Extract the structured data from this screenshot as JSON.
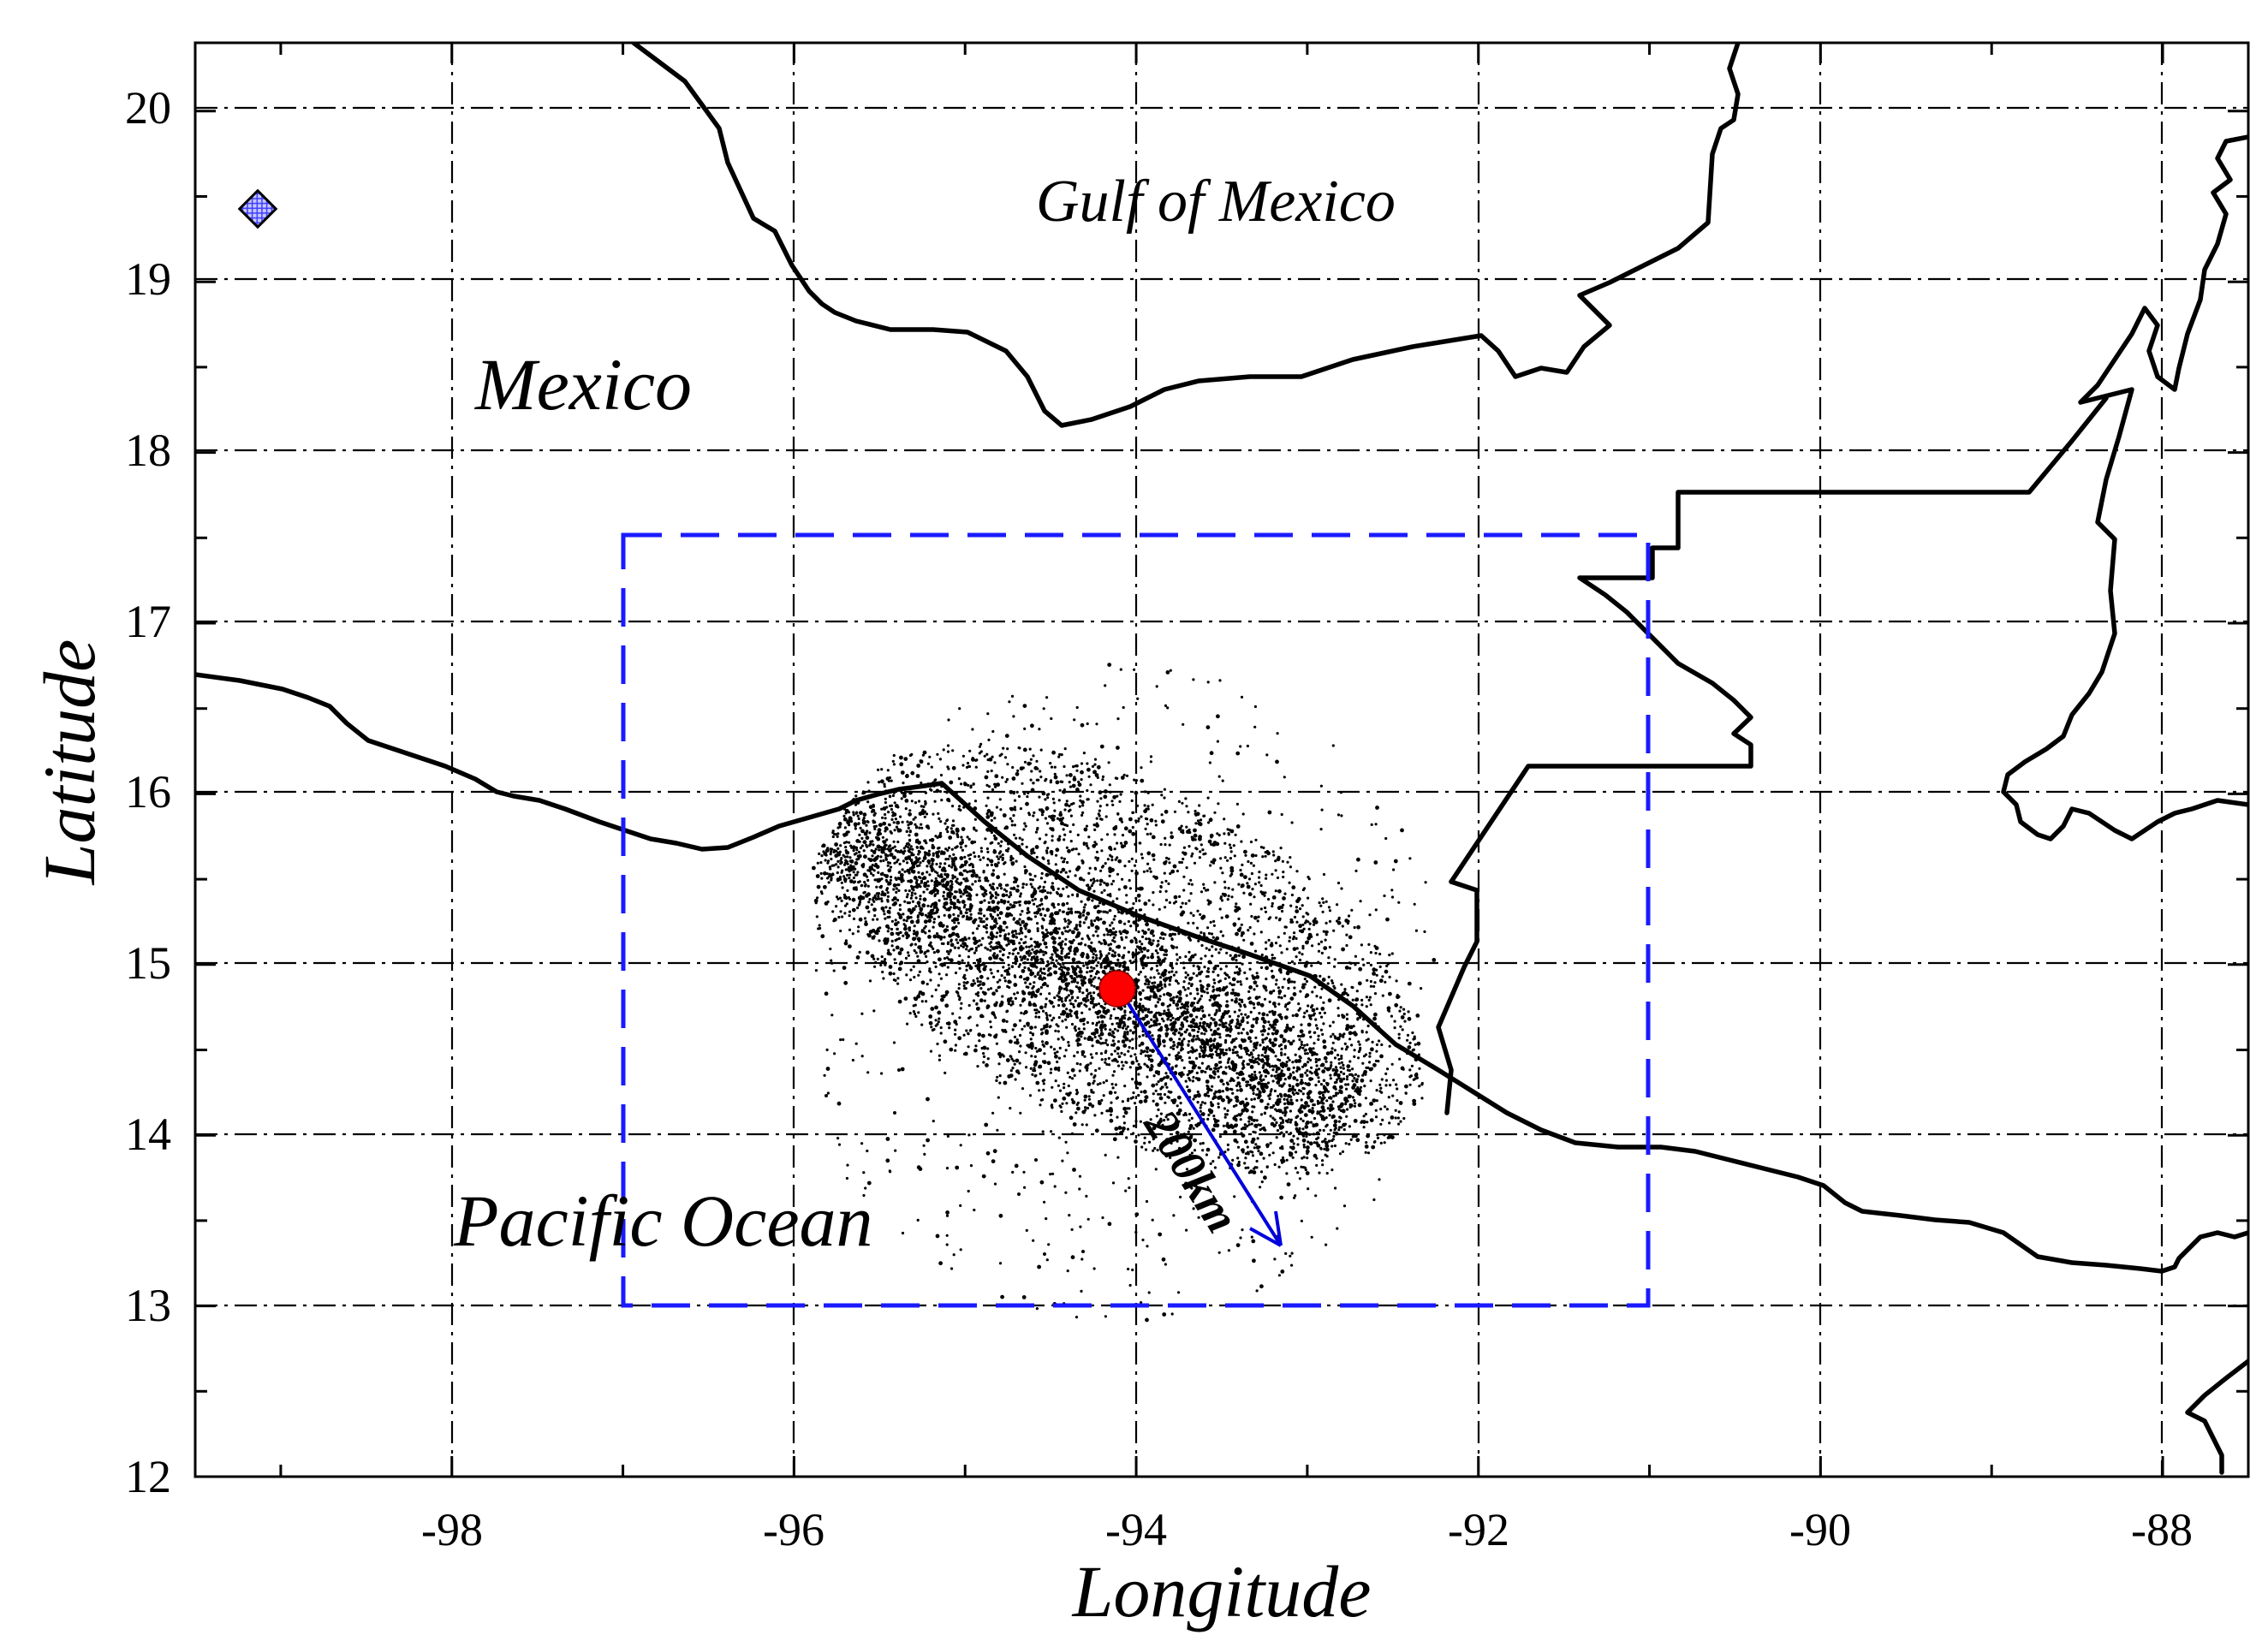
{
  "figure": {
    "x_axis_title": "Longitude",
    "y_axis_title": "Latitude",
    "x_ticks": [
      "-98",
      "-96",
      "-94",
      "-92",
      "-90",
      "-88"
    ],
    "y_ticks": [
      "12",
      "13",
      "14",
      "15",
      "16",
      "17",
      "18",
      "19",
      "20"
    ],
    "labels": {
      "gulf": "Gulf of Mexico",
      "mexico": "Mexico",
      "pacific": "Pacific Ocean",
      "distance": "200km"
    }
  },
  "map": {
    "lon_range": [
      -99.5,
      -87.5
    ],
    "lat_range": [
      12,
      20.4
    ],
    "grid": "dash-dot lines at every 2° longitude and 1° latitude",
    "study_region": {
      "lon": [
        -97,
        -91
      ],
      "lat": [
        13,
        17.5
      ],
      "color": "#1a1aff",
      "style": "dashed"
    },
    "epicenter": {
      "lon": -94.1,
      "lat": 14.85,
      "color": "#ff0000"
    },
    "radius_arrow": {
      "from": [
        -94.1,
        14.85
      ],
      "to": [
        -93.15,
        13.35
      ],
      "color": "#0000dd",
      "label": "200km"
    },
    "scatter": {
      "center_lon": -94.0,
      "center_lat": 15.1,
      "radius_km": 200,
      "count": 7000,
      "color": "#000000"
    },
    "marker": {
      "lon": -99.1,
      "lat": 19.4,
      "shape": "diamond",
      "color": "#5555ff"
    },
    "coastline_color": "#000000"
  }
}
